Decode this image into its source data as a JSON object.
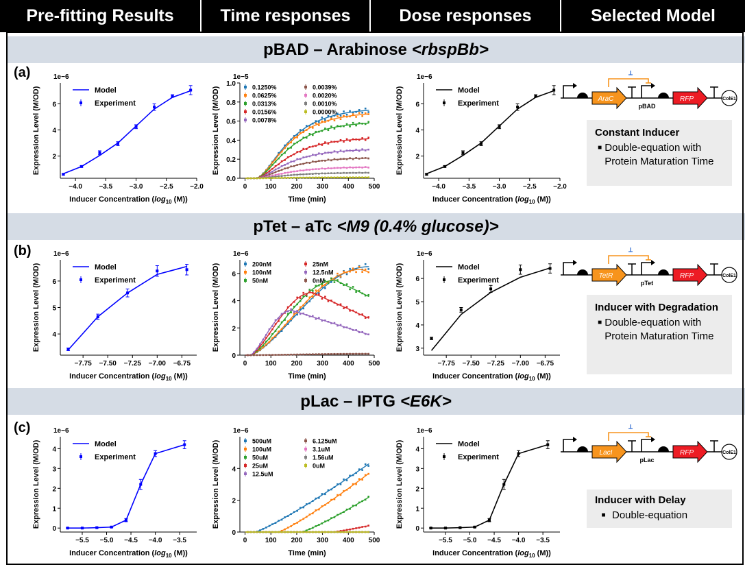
{
  "headers": [
    "Pre-fitting Results",
    "Time responses",
    "Dose responses",
    "Selected Model"
  ],
  "rows": [
    {
      "letter": "(a)",
      "band_plain": "pBAD – Arabinose",
      "band_ital": "<rbspBb>",
      "promoter": "pBAD",
      "repressor": "AraC",
      "reporter": "RFP",
      "origin": "ColE1",
      "model_title": "Constant Inducer",
      "model_bullets": [
        "Double-equation with Protein Maturation Time"
      ],
      "pre_fit": {
        "type": "line",
        "title": "",
        "scale_label": "1e−6",
        "xlabel": "Inducer Concentration (log10 (M))",
        "ylabel": "Expression Level (M/OD)",
        "xlim": [
          -4.25,
          -2.0
        ],
        "ylim": [
          0.3,
          7.6
        ],
        "xticks": [
          -4.0,
          -3.5,
          -3.0,
          -2.5,
          -2.0
        ],
        "xtick_labels": [
          "−4.0",
          "−3.5",
          "−3.0",
          "−2.5",
          "−2.0"
        ],
        "yticks": [
          2,
          4,
          6
        ],
        "ytick_labels": [
          "2",
          "4",
          "6"
        ],
        "legend": [
          "Model",
          "Experiment"
        ],
        "model": {
          "x": [
            -4.2,
            -3.9,
            -3.6,
            -3.3,
            -3.0,
            -2.7,
            -2.4,
            -2.1
          ],
          "y": [
            0.65,
            1.2,
            2.05,
            3.0,
            4.3,
            5.6,
            6.5,
            7.0
          ]
        },
        "experiment": {
          "x": [
            -4.2,
            -3.9,
            -3.6,
            -3.3,
            -3.0,
            -2.7,
            -2.4,
            -2.1
          ],
          "y": [
            0.6,
            1.2,
            2.25,
            2.95,
            4.25,
            5.75,
            6.6,
            7.05
          ],
          "err": [
            0.05,
            0.06,
            0.15,
            0.15,
            0.15,
            0.25,
            0.1,
            0.35
          ]
        }
      },
      "time": {
        "type": "line",
        "scale_label": "1e−5",
        "xlabel": "Time (min)",
        "ylabel": "Expression Level (M/OD)",
        "xlim": [
          -20,
          500
        ],
        "ylim": [
          0,
          1.0
        ],
        "xticks": [
          0,
          100,
          200,
          300,
          400,
          500
        ],
        "xtick_labels": [
          "0",
          "100",
          "200",
          "300",
          "400",
          "500"
        ],
        "yticks": [
          0,
          0.2,
          0.4,
          0.6,
          0.8,
          1.0
        ],
        "ytick_labels": [
          "0.0",
          "0.2",
          "0.4",
          "0.6",
          "0.8",
          "1.0"
        ],
        "lag": 40,
        "k": 0.013,
        "series": [
          {
            "name": "0.1250%",
            "plateau": 0.74,
            "color": "#1f77b4"
          },
          {
            "name": "0.0625%",
            "plateau": 0.7,
            "color": "#ff7f0e"
          },
          {
            "name": "0.0313%",
            "plateau": 0.6,
            "color": "#2ca02c"
          },
          {
            "name": "0.0156%",
            "plateau": 0.43,
            "color": "#d62728"
          },
          {
            "name": "0.0078%",
            "plateau": 0.31,
            "color": "#9467bd"
          },
          {
            "name": "0.0039%",
            "plateau": 0.22,
            "color": "#8c564b"
          },
          {
            "name": "0.0020%",
            "plateau": 0.12,
            "color": "#e377c2"
          },
          {
            "name": "0.0010%",
            "plateau": 0.06,
            "color": "#7f7f7f"
          },
          {
            "name": "0.0000%",
            "plateau": 0.01,
            "color": "#bcbd22"
          }
        ]
      },
      "dose": {
        "type": "line",
        "scale_label": "1e−6",
        "xlabel": "Inducer Concentration (log10 (M))",
        "ylabel": "Expression Level (M/OD)",
        "xlim": [
          -4.25,
          -2.0
        ],
        "ylim": [
          0.3,
          7.6
        ],
        "xticks": [
          -4.0,
          -3.5,
          -3.0,
          -2.5,
          -2.0
        ],
        "xtick_labels": [
          "−4.0",
          "−3.5",
          "−3.0",
          "−2.5",
          "−2.0"
        ],
        "yticks": [
          2,
          4,
          6
        ],
        "ytick_labels": [
          "2",
          "4",
          "6"
        ],
        "legend": [
          "Model",
          "Experiment"
        ],
        "model": {
          "x": [
            -4.2,
            -3.9,
            -3.6,
            -3.3,
            -3.0,
            -2.7,
            -2.4,
            -2.1
          ],
          "y": [
            0.65,
            1.2,
            2.05,
            3.0,
            4.3,
            5.6,
            6.5,
            7.0
          ]
        },
        "experiment": {
          "x": [
            -4.2,
            -3.9,
            -3.6,
            -3.3,
            -3.0,
            -2.7,
            -2.4,
            -2.1
          ],
          "y": [
            0.6,
            1.2,
            2.25,
            2.95,
            4.25,
            5.75,
            6.6,
            7.05
          ],
          "err": [
            0.05,
            0.06,
            0.15,
            0.15,
            0.15,
            0.25,
            0.1,
            0.35
          ]
        }
      }
    },
    {
      "letter": "(b)",
      "band_plain": "pTet – aTc",
      "band_ital": "<M9 (0.4% glucose)>",
      "promoter": "pTet",
      "repressor": "TetR",
      "reporter": "RFP",
      "origin": "ColE1",
      "model_title": "Inducer with Degradation",
      "model_bullets": [
        "Double-equation with Protein Maturation Time"
      ],
      "pre_fit": {
        "type": "line",
        "scale_label": "1e−6",
        "xlabel": "Inducer Concentration (log10 (M))",
        "ylabel": "Expression Level (M/OD)",
        "xlim": [
          -7.98,
          -6.6
        ],
        "ylim": [
          3.2,
          6.8
        ],
        "xticks": [
          -7.75,
          -7.5,
          -7.25,
          -7.0,
          -6.75
        ],
        "xtick_labels": [
          "−7.75",
          "−7.50",
          "−7.25",
          "−7.00",
          "−6.75"
        ],
        "yticks": [
          4,
          5,
          6
        ],
        "ytick_labels": [
          "4",
          "5",
          "6"
        ],
        "legend": [
          "Model",
          "Experiment"
        ],
        "model": {
          "x": [
            -7.9,
            -7.6,
            -7.3,
            -7.0,
            -6.7
          ],
          "y": [
            3.4,
            4.65,
            5.55,
            6.25,
            6.55
          ]
        },
        "experiment": {
          "x": [
            -7.9,
            -7.6,
            -7.3,
            -7.0,
            -6.7
          ],
          "y": [
            3.42,
            4.65,
            5.55,
            6.38,
            6.43
          ],
          "err": [
            0.05,
            0.1,
            0.15,
            0.2,
            0.2
          ]
        }
      },
      "time": {
        "type": "line",
        "scale_label": "1e−6",
        "xlabel": "Time (min)",
        "ylabel": "Expression Level (M/OD)",
        "xlim": [
          -20,
          500
        ],
        "ylim": [
          0,
          7.0
        ],
        "xticks": [
          0,
          100,
          200,
          300,
          400,
          500
        ],
        "xtick_labels": [
          "0",
          "100",
          "200",
          "300",
          "400",
          "500"
        ],
        "yticks": [
          0,
          2,
          4,
          6
        ],
        "ytick_labels": [
          "0",
          "2",
          "4",
          "6"
        ],
        "series": [
          {
            "name": "200nM",
            "color": "#1f77b4",
            "peak": 6.5,
            "t_peak": 480,
            "decay": 0
          },
          {
            "name": "100nM",
            "color": "#ff7f0e",
            "peak": 6.3,
            "t_peak": 450,
            "decay": 0.2
          },
          {
            "name": "50nM",
            "color": "#2ca02c",
            "peak": 5.5,
            "t_peak": 350,
            "decay": 1.2
          },
          {
            "name": "25nM",
            "color": "#d62728",
            "peak": 4.6,
            "t_peak": 260,
            "decay": 1.9
          },
          {
            "name": "12.5nM",
            "color": "#9467bd",
            "peak": 3.3,
            "t_peak": 180,
            "decay": 1.8
          },
          {
            "name": "0nM",
            "color": "#8c564b",
            "peak": 0.1,
            "t_peak": 480,
            "decay": 0
          }
        ]
      },
      "dose": {
        "type": "line",
        "scale_label": "1e−6",
        "xlabel": "Inducer Concentration (log10 (M))",
        "ylabel": "Expression Level (M/OD)",
        "xlim": [
          -7.98,
          -6.6
        ],
        "ylim": [
          2.7,
          6.8
        ],
        "xticks": [
          -7.75,
          -7.5,
          -7.25,
          -7.0,
          -6.75
        ],
        "xtick_labels": [
          "−7.75",
          "−7.50",
          "−7.25",
          "−7.00",
          "−6.75"
        ],
        "yticks": [
          3,
          4,
          5,
          6
        ],
        "ytick_labels": [
          "3",
          "4",
          "5",
          "6"
        ],
        "legend": [
          "Model",
          "Experiment"
        ],
        "model": {
          "x": [
            -7.9,
            -7.6,
            -7.3,
            -7.0,
            -6.7
          ],
          "y": [
            2.9,
            4.45,
            5.4,
            6.05,
            6.45
          ]
        },
        "experiment": {
          "x": [
            -7.9,
            -7.6,
            -7.3,
            -7.0,
            -6.7
          ],
          "y": [
            3.42,
            4.65,
            5.55,
            6.38,
            6.43
          ],
          "err": [
            0.05,
            0.1,
            0.15,
            0.2,
            0.2
          ]
        }
      }
    },
    {
      "letter": "(c)",
      "band_plain": "pLac – IPTG",
      "band_ital": "<E6K>",
      "promoter": "pLac",
      "repressor": "LacI",
      "reporter": "RFP",
      "origin": "ColE1",
      "model_title": "Inducer with Delay",
      "model_bullets": [
        "Double-equation"
      ],
      "pre_fit": {
        "type": "line",
        "scale_label": "1e−6",
        "xlabel": "Inducer Concentration (log10 (M))",
        "ylabel": "Expression Level (M/OD)",
        "xlim": [
          -5.95,
          -3.15
        ],
        "ylim": [
          -0.2,
          4.6
        ],
        "xticks": [
          -5.5,
          -5.0,
          -4.5,
          -4.0,
          -3.5
        ],
        "xtick_labels": [
          "−5.5",
          "−5.0",
          "−4.5",
          "−4.0",
          "−3.5"
        ],
        "yticks": [
          0,
          1,
          2,
          3,
          4
        ],
        "ytick_labels": [
          "0",
          "1",
          "2",
          "3",
          "4"
        ],
        "legend": [
          "Model",
          "Experiment"
        ],
        "model": {
          "x": [
            -5.8,
            -5.5,
            -5.2,
            -4.9,
            -4.6,
            -4.3,
            -4.0,
            -3.4
          ],
          "y": [
            0.0,
            0.0,
            0.02,
            0.05,
            0.4,
            2.2,
            3.75,
            4.2
          ]
        },
        "experiment": {
          "x": [
            -5.8,
            -5.5,
            -5.2,
            -4.9,
            -4.6,
            -4.3,
            -4.0,
            -3.4
          ],
          "y": [
            0.0,
            0.0,
            0.02,
            0.05,
            0.4,
            2.2,
            3.75,
            4.2
          ],
          "err": [
            0.02,
            0.02,
            0.02,
            0.03,
            0.08,
            0.25,
            0.15,
            0.2
          ]
        }
      },
      "time": {
        "type": "line",
        "scale_label": "1e−6",
        "xlabel": "Time (min)",
        "ylabel": "Expression Level (M/OD)",
        "xlim": [
          -20,
          500
        ],
        "ylim": [
          0,
          6.0
        ],
        "xticks": [
          0,
          100,
          200,
          300,
          400,
          500
        ],
        "xtick_labels": [
          "0",
          "100",
          "200",
          "300",
          "400",
          "500"
        ],
        "yticks": [
          0,
          2,
          4
        ],
        "ytick_labels": [
          "0",
          "2",
          "4"
        ],
        "series": [
          {
            "name": "500uM",
            "color": "#1f77b4",
            "start": 40,
            "end": 4.3
          },
          {
            "name": "100uM",
            "color": "#ff7f0e",
            "start": 130,
            "end": 3.7
          },
          {
            "name": "50uM",
            "color": "#2ca02c",
            "start": 220,
            "end": 2.2
          },
          {
            "name": "25uM",
            "color": "#d62728",
            "start": 340,
            "end": 0.4
          },
          {
            "name": "12.5uM",
            "color": "#9467bd",
            "start": 480,
            "end": 0.02
          },
          {
            "name": "6.125uM",
            "color": "#8c564b",
            "start": 480,
            "end": 0.0
          },
          {
            "name": "3.1uM",
            "color": "#e377c2",
            "start": 480,
            "end": 0.0
          },
          {
            "name": "1.56uM",
            "color": "#7f7f7f",
            "start": 480,
            "end": 0.0
          },
          {
            "name": "0uM",
            "color": "#bcbd22",
            "start": 480,
            "end": 0.0
          }
        ]
      },
      "dose": {
        "type": "line",
        "scale_label": "1e−6",
        "xlabel": "Inducer Concentration (log10 (M))",
        "ylabel": "Expression Level (M/OD)",
        "xlim": [
          -5.95,
          -3.15
        ],
        "ylim": [
          -0.2,
          4.6
        ],
        "xticks": [
          -5.5,
          -5.0,
          -4.5,
          -4.0,
          -3.5
        ],
        "xtick_labels": [
          "−5.5",
          "−5.0",
          "−4.5",
          "−4.0",
          "−3.5"
        ],
        "yticks": [
          0,
          1,
          2,
          3,
          4
        ],
        "ytick_labels": [
          "0",
          "1",
          "2",
          "3",
          "4"
        ],
        "legend": [
          "Model",
          "Experiment"
        ],
        "model": {
          "x": [
            -5.8,
            -5.5,
            -5.2,
            -4.9,
            -4.6,
            -4.3,
            -4.0,
            -3.4
          ],
          "y": [
            0.0,
            0.0,
            0.02,
            0.05,
            0.4,
            2.2,
            3.75,
            4.2
          ]
        },
        "experiment": {
          "x": [
            -5.8,
            -5.5,
            -5.2,
            -4.9,
            -4.6,
            -4.3,
            -4.0,
            -3.4
          ],
          "y": [
            0.0,
            0.0,
            0.02,
            0.05,
            0.4,
            2.2,
            3.75,
            4.2
          ],
          "err": [
            0.02,
            0.02,
            0.02,
            0.03,
            0.08,
            0.25,
            0.15,
            0.2
          ]
        }
      }
    }
  ],
  "colors": {
    "model_blue": "#0000ff",
    "model_black": "#000000",
    "band_bg": "#d5dce5",
    "orange": "#f7941d",
    "red": "#ed1c24",
    "box_bg": "#ececec"
  }
}
